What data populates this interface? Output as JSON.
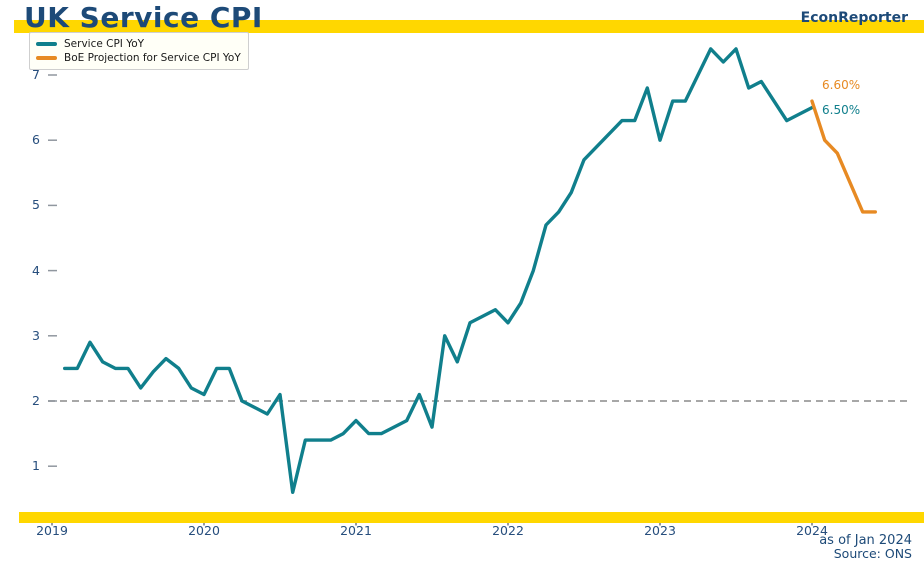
{
  "header": {
    "title": "UK Service CPI",
    "brand": "EconReporter"
  },
  "legend": [
    {
      "label": "Service CPI YoY",
      "color": "#107F8C"
    },
    {
      "label": "BoE Projection for Service CPI YoY",
      "color": "#E78A23"
    }
  ],
  "annotations": [
    {
      "text": "6.60%",
      "color": "#E78A23",
      "series": "BoE Projection for Service CPI YoY"
    },
    {
      "text": "6.50%",
      "color": "#107F8C",
      "series": "Service CPI YoY"
    }
  ],
  "footer": {
    "as_of": "as of Jan 2024",
    "source": "Source: ONS"
  },
  "colors": {
    "accent_bar": "#FFD700",
    "navy_text": "#1D4A78",
    "reference_line": "#9B9B9B"
  },
  "chart_data": {
    "type": "line",
    "title": "UK Service CPI",
    "xlabel": "",
    "ylabel": "",
    "x_tick_labels": [
      "2019",
      "2020",
      "2021",
      "2022",
      "2023",
      "2024"
    ],
    "y_ticks": [
      1,
      2,
      3,
      4,
      5,
      6,
      7
    ],
    "ylim_visible": [
      0.5,
      7.5
    ],
    "grid": false,
    "legend_position": "top-left",
    "reference_line": {
      "value": 2.0,
      "style": "dashed"
    },
    "frequency": "monthly",
    "series": [
      {
        "name": "Service CPI YoY",
        "color": "#107F8C",
        "start": "2019-02",
        "end": "2024-01",
        "values": [
          2.5,
          2.5,
          2.9,
          2.6,
          2.5,
          2.5,
          2.2,
          2.45,
          2.65,
          2.5,
          2.2,
          2.1,
          2.5,
          2.5,
          2.0,
          1.9,
          1.8,
          2.1,
          0.6,
          1.4,
          1.4,
          1.4,
          1.5,
          1.7,
          1.5,
          1.5,
          1.6,
          1.7,
          2.1,
          1.6,
          3.0,
          2.6,
          3.2,
          3.3,
          3.4,
          3.2,
          3.5,
          4.0,
          4.7,
          4.9,
          5.2,
          5.7,
          5.9,
          6.1,
          6.3,
          6.3,
          6.8,
          6.0,
          6.6,
          6.6,
          7.0,
          7.4,
          7.2,
          7.4,
          6.8,
          6.9,
          6.6,
          6.3,
          6.4,
          6.5
        ]
      },
      {
        "name": "BoE Projection for Service CPI YoY",
        "color": "#E78A23",
        "start": "2024-01",
        "end": "2024-06",
        "values": [
          6.6,
          6.0,
          5.8,
          5.35,
          4.9,
          4.9
        ]
      }
    ]
  }
}
